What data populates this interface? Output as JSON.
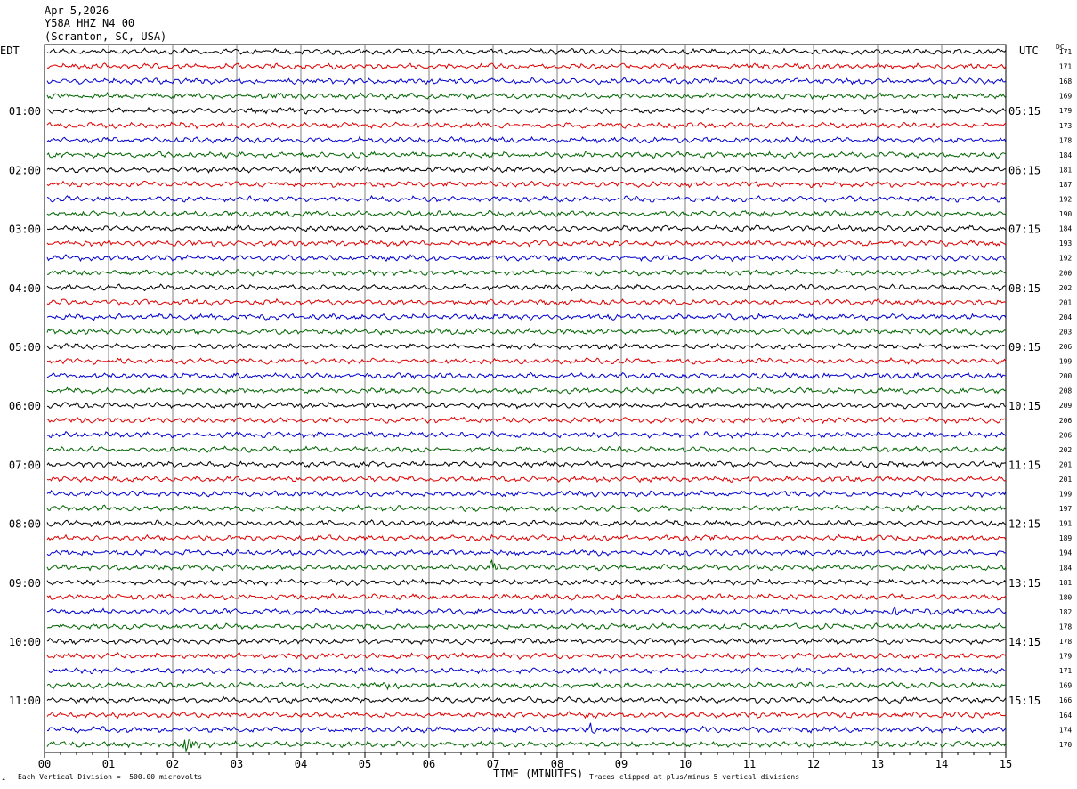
{
  "header": {
    "date": "Apr 5,2026",
    "station": "Y58A HHZ N4 00",
    "location": "(Scranton, SC, USA)"
  },
  "left_tz": "EDT",
  "right_tz": "UTC",
  "dc_label": "DC",
  "footer": {
    "scale_text": "Each Vertical Division =  500.00 microvolts",
    "xlabel": "TIME (MINUTES)",
    "clip_text": "Traces clipped at plus/minus 5 vertical divisions",
    "corner_mark": "∠"
  },
  "chart_data": {
    "type": "line",
    "title": "Y58A HHZ N4 00",
    "xlabel": "TIME (MINUTES)",
    "x_ticks": [
      "00",
      "01",
      "02",
      "03",
      "04",
      "05",
      "06",
      "07",
      "08",
      "09",
      "10",
      "11",
      "12",
      "13",
      "14",
      "15"
    ],
    "xlim": [
      0,
      15
    ],
    "grid": true,
    "rows_per_hour": 4,
    "trace_colors": [
      "#000000",
      "#dd0000",
      "#0000cc",
      "#006400"
    ],
    "left_hour_labels": [
      "01:00",
      "02:00",
      "03:00",
      "04:00",
      "05:00",
      "06:00",
      "07:00",
      "08:00",
      "09:00",
      "10:00",
      "11:00"
    ],
    "right_hour_labels": [
      "05:15",
      "06:15",
      "07:15",
      "08:15",
      "09:15",
      "10:15",
      "11:15",
      "12:15",
      "13:15",
      "14:15",
      "15:15"
    ],
    "dc_offsets": [
      "171",
      "171",
      "168",
      "169",
      "179",
      "173",
      "178",
      "184",
      "181",
      "187",
      "192",
      "190",
      "184",
      "193",
      "192",
      "200",
      "202",
      "201",
      "204",
      "203",
      "206",
      "199",
      "200",
      "208",
      "209",
      "206",
      "206",
      "202",
      "201",
      "201",
      "199",
      "197",
      "191",
      "189",
      "194",
      "184",
      "181",
      "180",
      "182",
      "178",
      "178",
      "179",
      "171",
      "169",
      "166",
      "164",
      "174",
      "170"
    ],
    "events": [
      {
        "row": 46,
        "minute": 8.5,
        "amplitude": 2.0
      },
      {
        "row": 47,
        "minute": 2.2,
        "amplitude": 2.5
      },
      {
        "row": 38,
        "minute": 13.3,
        "amplitude": 1.6
      },
      {
        "row": 35,
        "minute": 7.0,
        "amplitude": 1.4
      },
      {
        "row": 43,
        "minute": 5.4,
        "amplitude": 1.2
      }
    ]
  }
}
